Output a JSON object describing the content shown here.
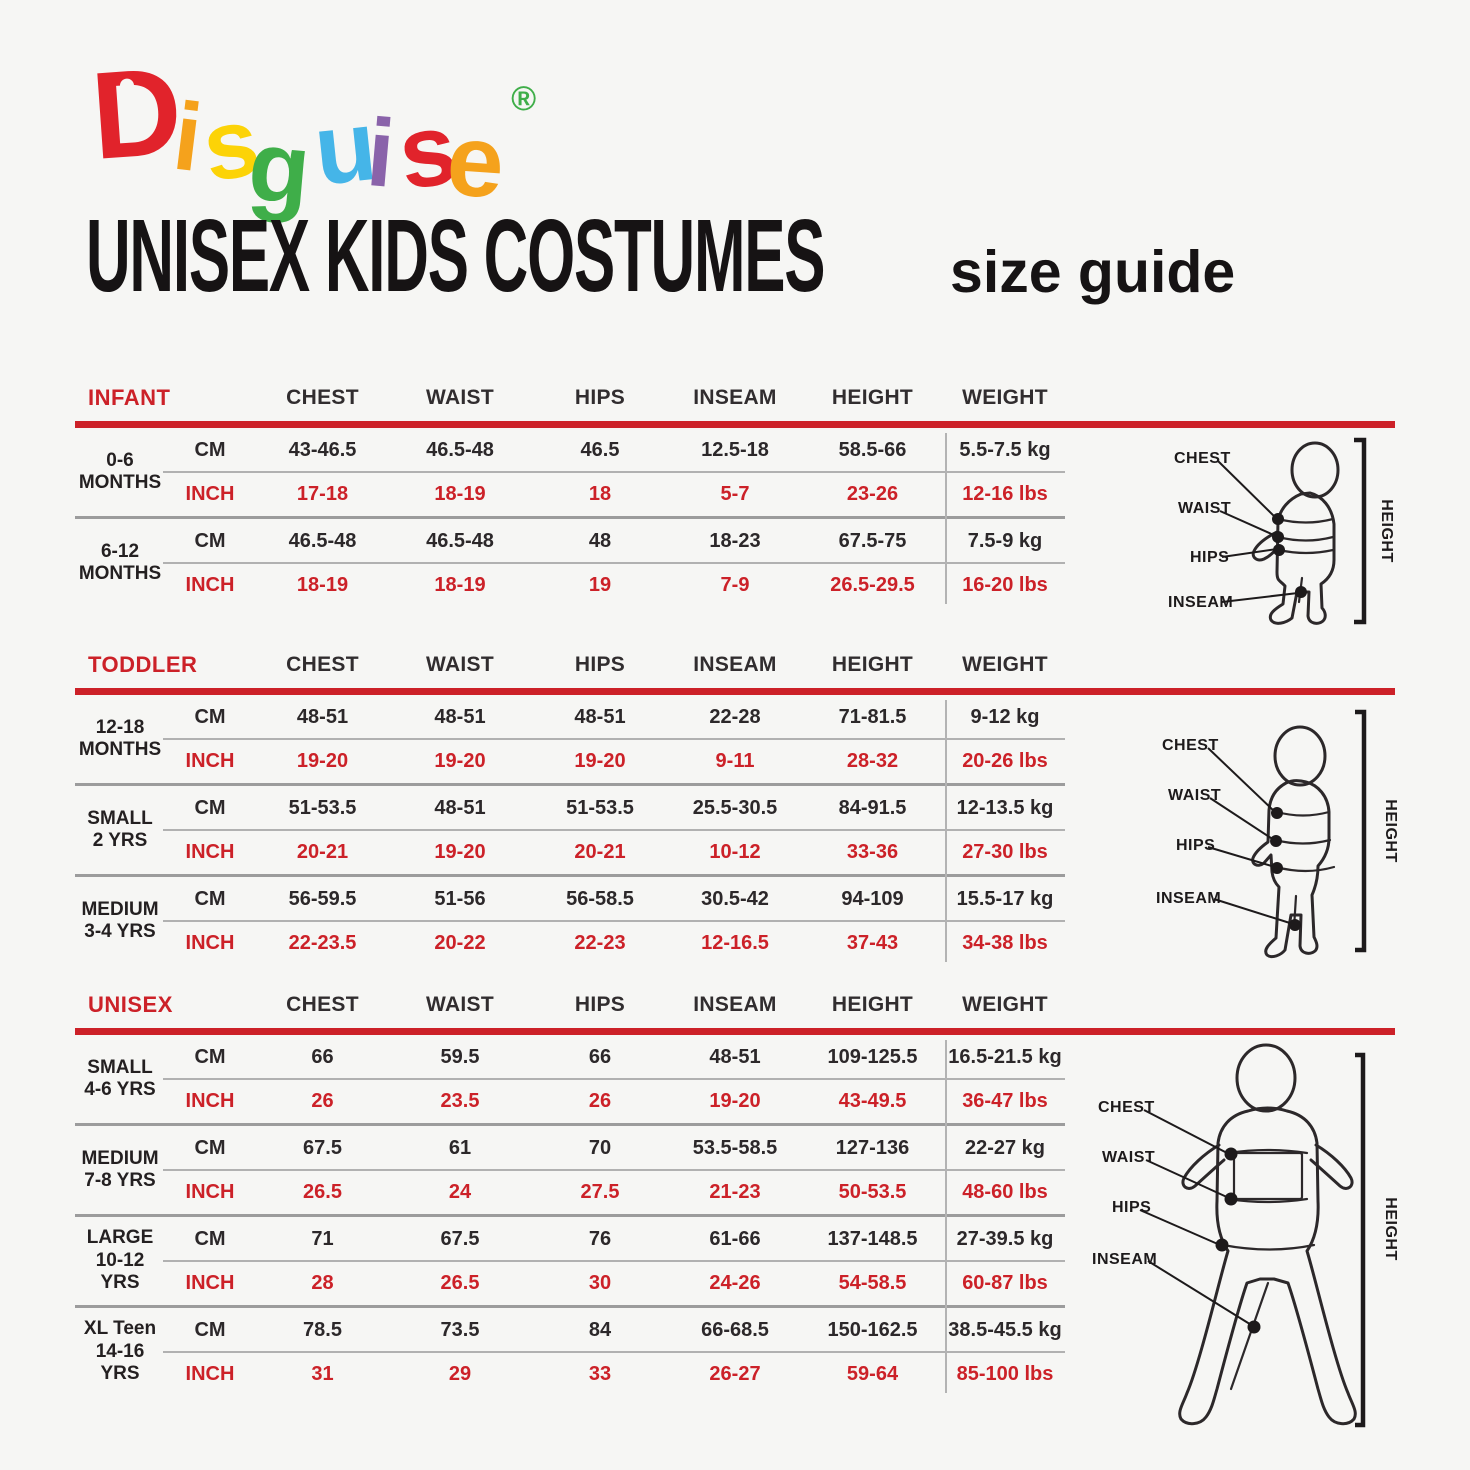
{
  "logo": {
    "letters": [
      {
        "ch": "D",
        "color": "#e1232b"
      },
      {
        "ch": "i",
        "color": "#f5a21c"
      },
      {
        "ch": "s",
        "color": "#fcd307"
      },
      {
        "ch": "g",
        "color": "#3fae49"
      },
      {
        "ch": "u",
        "color": "#45b5e8"
      },
      {
        "ch": "i",
        "color": "#8a63aa"
      },
      {
        "ch": "s",
        "color": "#e1232b"
      },
      {
        "ch": "e",
        "color": "#f5a21c"
      }
    ],
    "registered": "®",
    "registered_color": "#3fae49"
  },
  "title": {
    "main": "UNISEX KIDS COSTUMES",
    "sub": "size guide"
  },
  "colors": {
    "accent_red": "#cc2128",
    "dark_text": "#2c282a",
    "line_gray": "#9c9c9c"
  },
  "columns": [
    "CHEST",
    "WAIST",
    "HIPS",
    "INSEAM",
    "HEIGHT",
    "WEIGHT"
  ],
  "unit_labels": {
    "cm": "CM",
    "inch": "INCH"
  },
  "diagram_labels": {
    "chest": "CHEST",
    "waist": "WAIST",
    "hips": "HIPS",
    "inseam": "INSEAM",
    "height": "HEIGHT"
  },
  "tables": [
    {
      "name": "INFANT",
      "rows": [
        {
          "size": [
            "0-6",
            "MONTHS"
          ],
          "cm": [
            "43-46.5",
            "46.5-48",
            "46.5",
            "12.5-18",
            "58.5-66",
            "5.5-7.5 kg"
          ],
          "inch": [
            "17-18",
            "18-19",
            "18",
            "5-7",
            "23-26",
            "12-16 lbs"
          ]
        },
        {
          "size": [
            "6-12",
            "MONTHS"
          ],
          "cm": [
            "46.5-48",
            "46.5-48",
            "48",
            "18-23",
            "67.5-75",
            "7.5-9 kg"
          ],
          "inch": [
            "18-19",
            "18-19",
            "19",
            "7-9",
            "26.5-29.5",
            "16-20 lbs"
          ]
        }
      ]
    },
    {
      "name": "TODDLER",
      "rows": [
        {
          "size": [
            "12-18",
            "MONTHS"
          ],
          "cm": [
            "48-51",
            "48-51",
            "48-51",
            "22-28",
            "71-81.5",
            "9-12 kg"
          ],
          "inch": [
            "19-20",
            "19-20",
            "19-20",
            "9-11",
            "28-32",
            "20-26 lbs"
          ]
        },
        {
          "size": [
            "SMALL",
            "2 YRS"
          ],
          "cm": [
            "51-53.5",
            "48-51",
            "51-53.5",
            "25.5-30.5",
            "84-91.5",
            "12-13.5 kg"
          ],
          "inch": [
            "20-21",
            "19-20",
            "20-21",
            "10-12",
            "33-36",
            "27-30 lbs"
          ]
        },
        {
          "size": [
            "MEDIUM",
            "3-4 YRS"
          ],
          "cm": [
            "56-59.5",
            "51-56",
            "56-58.5",
            "30.5-42",
            "94-109",
            "15.5-17 kg"
          ],
          "inch": [
            "22-23.5",
            "20-22",
            "22-23",
            "12-16.5",
            "37-43",
            "34-38 lbs"
          ]
        }
      ]
    },
    {
      "name": "UNISEX",
      "rows": [
        {
          "size": [
            "SMALL",
            "4-6 YRS"
          ],
          "cm": [
            "66",
            "59.5",
            "66",
            "48-51",
            "109-125.5",
            "16.5-21.5 kg"
          ],
          "inch": [
            "26",
            "23.5",
            "26",
            "19-20",
            "43-49.5",
            "36-47 lbs"
          ]
        },
        {
          "size": [
            "MEDIUM",
            "7-8 YRS"
          ],
          "cm": [
            "67.5",
            "61",
            "70",
            "53.5-58.5",
            "127-136",
            "22-27 kg"
          ],
          "inch": [
            "26.5",
            "24",
            "27.5",
            "21-23",
            "50-53.5",
            "48-60 lbs"
          ]
        },
        {
          "size": [
            "LARGE",
            "10-12 YRS"
          ],
          "cm": [
            "71",
            "67.5",
            "76",
            "61-66",
            "137-148.5",
            "27-39.5 kg"
          ],
          "inch": [
            "28",
            "26.5",
            "30",
            "24-26",
            "54-58.5",
            "60-87 lbs"
          ]
        },
        {
          "size": [
            "XL Teen",
            "14-16 YRS"
          ],
          "cm": [
            "78.5",
            "73.5",
            "84",
            "66-68.5",
            "150-162.5",
            "38.5-45.5 kg"
          ],
          "inch": [
            "31",
            "29",
            "33",
            "26-27",
            "59-64",
            "85-100 lbs"
          ]
        }
      ]
    }
  ]
}
